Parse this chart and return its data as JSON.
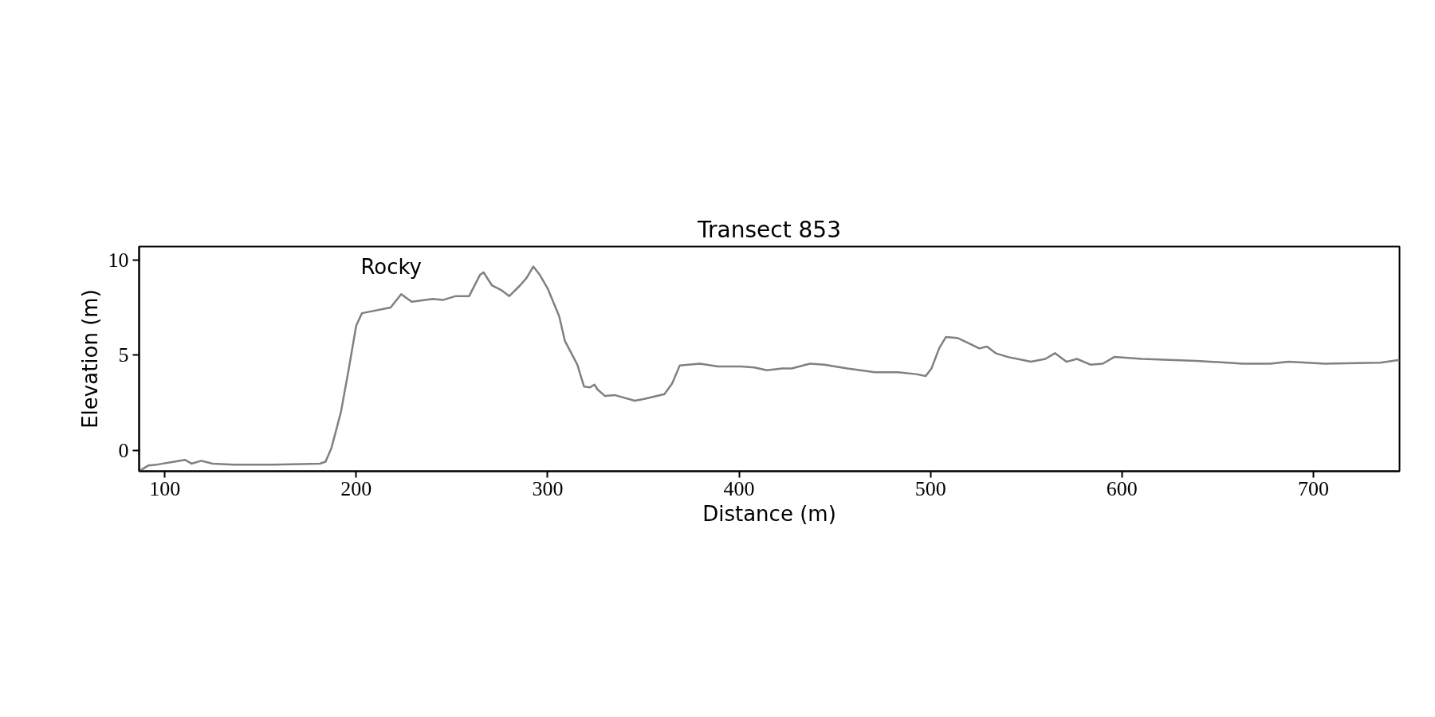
{
  "chart_data": {
    "type": "line",
    "title": "Transect 853",
    "xlabel": "Distance (m)",
    "ylabel": "Elevation (m)",
    "x": [
      86.6,
      91.4,
      96,
      105,
      110.5,
      114,
      119,
      125,
      136,
      157,
      181,
      184,
      187,
      192,
      196,
      200,
      203,
      218,
      223.5,
      229,
      240,
      245.5,
      252,
      259,
      264.6,
      266.5,
      271,
      276,
      280,
      285.5,
      289,
      292.5,
      296,
      300,
      306,
      309,
      315.5,
      319,
      322,
      324.5,
      326,
      330,
      335,
      345.5,
      350.5,
      361,
      365,
      369,
      379.5,
      389,
      401,
      408,
      414.5,
      422.5,
      427.5,
      437,
      444.5,
      456.5,
      471,
      483,
      492.5,
      497.5,
      500.5,
      504.5,
      508,
      514,
      521.5,
      525.5,
      529.5,
      534,
      540.5,
      552.5,
      560,
      565,
      571,
      576.5,
      583.5,
      590,
      596,
      610.5,
      639,
      663,
      677.5,
      687,
      706,
      735,
      745
    ],
    "series": [
      {
        "color": "#808080",
        "values": [
          -1.1,
          -0.8,
          -0.75,
          -0.6,
          -0.5,
          -0.7,
          -0.55,
          -0.7,
          -0.75,
          -0.75,
          -0.7,
          -0.6,
          0.1,
          2.0,
          4.2,
          6.55,
          7.2,
          7.5,
          8.2,
          7.8,
          7.95,
          7.9,
          8.1,
          8.1,
          9.2,
          9.35,
          8.65,
          8.4,
          8.1,
          8.65,
          9.05,
          9.65,
          9.2,
          8.5,
          7.05,
          5.75,
          4.5,
          3.35,
          3.3,
          3.45,
          3.2,
          2.85,
          2.9,
          2.6,
          2.7,
          2.95,
          3.5,
          4.45,
          4.55,
          4.4,
          4.4,
          4.35,
          4.2,
          4.3,
          4.3,
          4.55,
          4.5,
          4.3,
          4.1,
          4.1,
          4.0,
          3.9,
          4.3,
          5.35,
          5.95,
          5.9,
          5.55,
          5.35,
          5.45,
          5.1,
          4.9,
          4.65,
          4.8,
          5.1,
          4.65,
          4.8,
          4.5,
          4.55,
          4.9,
          4.8,
          4.7,
          4.55,
          4.55,
          4.65,
          4.55,
          4.6,
          4.75
        ]
      }
    ],
    "xlim": [
      86.6,
      745
    ],
    "ylim": [
      -1.1,
      10.7
    ],
    "xticks": [
      100,
      200,
      300,
      400,
      500,
      600,
      700
    ],
    "yticks": [
      0,
      5,
      10
    ],
    "annotations": [
      "Rocky"
    ],
    "grid": false
  }
}
